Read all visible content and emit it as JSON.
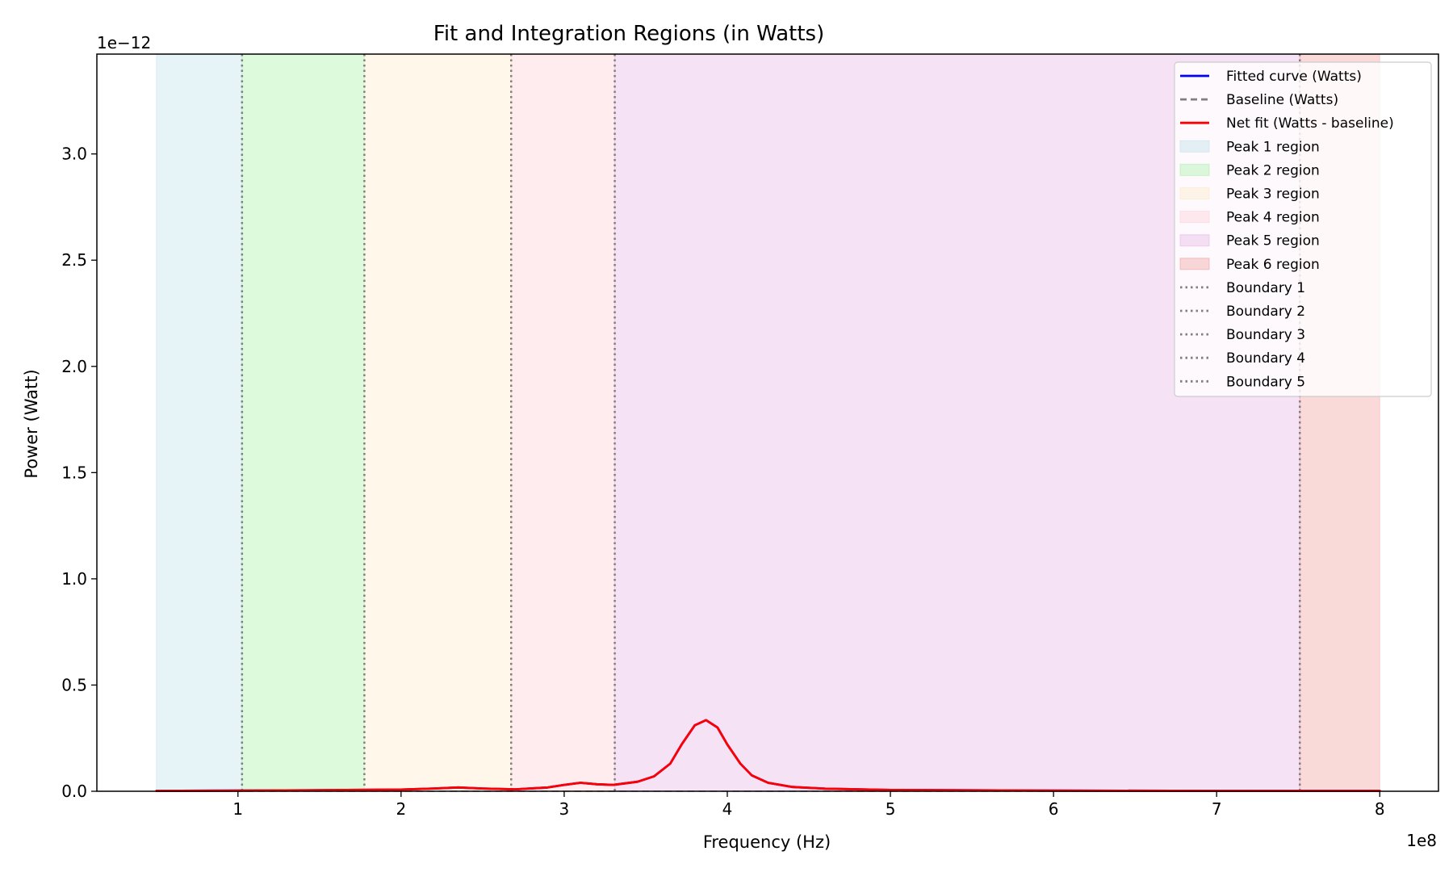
{
  "chart_data": {
    "type": "line",
    "title": "Fit and Integration Regions (in Watts)",
    "xlabel": "Frequency (Hz)",
    "ylabel": "Power (Watt)",
    "x_offset_text": "1e8",
    "y_offset_text": "1e−12",
    "xlim": [
      13500000.0,
      836000000.0
    ],
    "ylim": [
      0,
      3.47e-12
    ],
    "x_ticks": [
      100000000.0,
      200000000.0,
      300000000.0,
      400000000.0,
      500000000.0,
      600000000.0,
      700000000.0,
      800000000.0
    ],
    "x_tick_labels": [
      "1",
      "2",
      "3",
      "4",
      "5",
      "6",
      "7",
      "8"
    ],
    "y_ticks": [
      0,
      5e-13,
      1e-12,
      1.5e-12,
      2e-12,
      2.5e-12,
      3e-12
    ],
    "y_tick_labels": [
      "0.0",
      "0.5",
      "1.0",
      "1.5",
      "2.0",
      "2.5",
      "3.0"
    ],
    "grid": false,
    "legend_position": "top-right",
    "regions": [
      {
        "name": "Peak 1 region",
        "x0": 50000000.0,
        "x1": 102500000.0,
        "color": "#add8e6"
      },
      {
        "name": "Peak 2 region",
        "x0": 102500000.0,
        "x1": 177500000.0,
        "color": "#90ee90"
      },
      {
        "name": "Peak 3 region",
        "x0": 177500000.0,
        "x1": 267500000.0,
        "color": "#ffe4b5"
      },
      {
        "name": "Peak 4 region",
        "x0": 267500000.0,
        "x1": 331000000.0,
        "color": "#ffc0cb"
      },
      {
        "name": "Peak 5 region",
        "x0": 331000000.0,
        "x1": 751000000.0,
        "color": "#dda0dd"
      },
      {
        "name": "Peak 6 region",
        "x0": 751000000.0,
        "x1": 800000000.0,
        "color": "#f08080"
      }
    ],
    "boundaries": [
      {
        "name": "Boundary 1",
        "x": 102500000.0
      },
      {
        "name": "Boundary 2",
        "x": 177500000.0
      },
      {
        "name": "Boundary 3",
        "x": 267500000.0
      },
      {
        "name": "Boundary 4",
        "x": 331000000.0
      },
      {
        "name": "Boundary 5",
        "x": 751000000.0
      }
    ],
    "series": [
      {
        "name": "Fitted curve (Watts)",
        "color": "#0000ff",
        "style": "solid",
        "x": [
          50000000.0,
          100000000.0,
          150000000.0,
          200000000.0,
          220000000.0,
          235000000.0,
          250000000.0,
          270000000.0,
          290000000.0,
          300000000.0,
          310000000.0,
          320000000.0,
          330000000.0,
          345000000.0,
          355000000.0,
          365000000.0,
          372000000.0,
          380000000.0,
          387000000.0,
          394000000.0,
          400000000.0,
          408000000.0,
          415000000.0,
          425000000.0,
          440000000.0,
          460000000.0,
          500000000.0,
          600000000.0,
          700000000.0,
          800000000.0
        ],
        "y": [
          2e-15,
          3e-15,
          5e-15,
          8e-15,
          1.3e-14,
          1.8e-14,
          1.3e-14,
          9e-15,
          1.8e-14,
          3e-14,
          4e-14,
          3.3e-14,
          3e-14,
          4.5e-14,
          7e-14,
          1.3e-13,
          2.2e-13,
          3.1e-13,
          3.35e-13,
          3e-13,
          2.2e-13,
          1.3e-13,
          7.5e-14,
          4e-14,
          2e-14,
          1.2e-14,
          6e-15,
          3e-15,
          2e-15,
          2e-15
        ]
      },
      {
        "name": "Baseline (Watts)",
        "color": "#808080",
        "style": "dashed",
        "x": [
          50000000.0,
          800000000.0
        ],
        "y": [
          0.0,
          0.0
        ]
      },
      {
        "name": "Net fit (Watts - baseline)",
        "color": "#ff0000",
        "style": "solid",
        "x": [
          50000000.0,
          100000000.0,
          150000000.0,
          200000000.0,
          220000000.0,
          235000000.0,
          250000000.0,
          270000000.0,
          290000000.0,
          300000000.0,
          310000000.0,
          320000000.0,
          330000000.0,
          345000000.0,
          355000000.0,
          365000000.0,
          372000000.0,
          380000000.0,
          387000000.0,
          394000000.0,
          400000000.0,
          408000000.0,
          415000000.0,
          425000000.0,
          440000000.0,
          460000000.0,
          500000000.0,
          600000000.0,
          700000000.0,
          800000000.0
        ],
        "y": [
          2e-15,
          3e-15,
          5e-15,
          8e-15,
          1.3e-14,
          1.8e-14,
          1.3e-14,
          9e-15,
          1.8e-14,
          3e-14,
          4e-14,
          3.3e-14,
          3e-14,
          4.5e-14,
          7e-14,
          1.3e-13,
          2.2e-13,
          3.1e-13,
          3.35e-13,
          3e-13,
          2.2e-13,
          1.3e-13,
          7.5e-14,
          4e-14,
          2e-14,
          1.2e-14,
          6e-15,
          3e-15,
          2e-15,
          2e-15
        ]
      }
    ]
  }
}
